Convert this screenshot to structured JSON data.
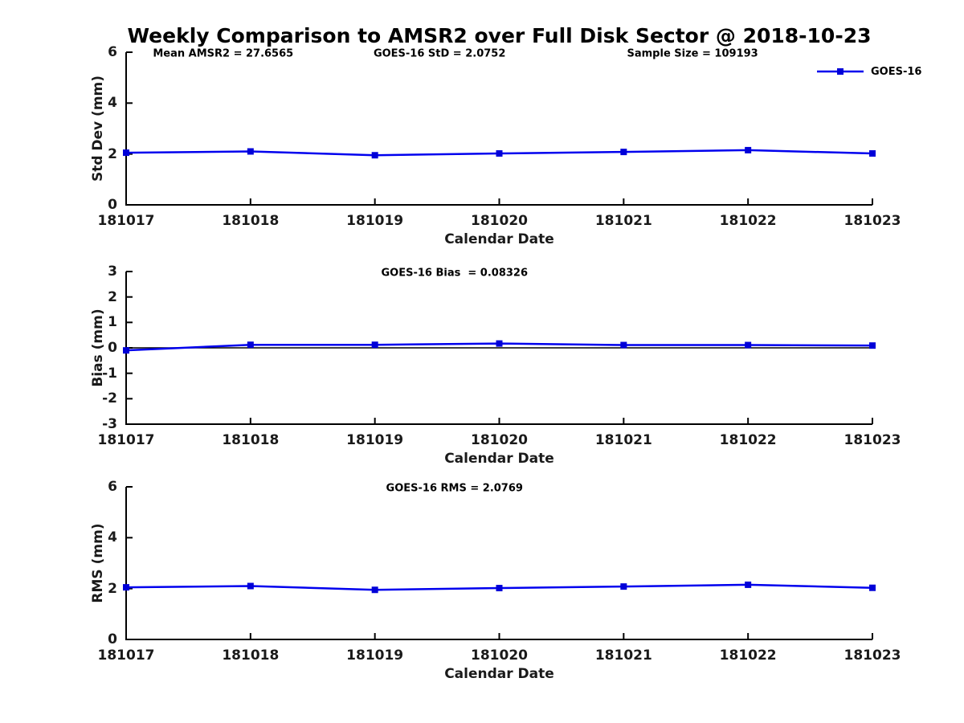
{
  "figure": {
    "title": "Weekly Comparison to AMSR2 over Full Disk Sector @ 2018-10-23",
    "legend": {
      "label": "GOES-16"
    },
    "colors": {
      "line": "#0000EE",
      "marker": "#0000D8",
      "axis": "#000000",
      "zero_line": "#000000",
      "background": "#FFFFFF"
    }
  },
  "chart_data": [
    {
      "type": "line",
      "subplot": "std-dev",
      "ylabel": "Std Dev (mm)",
      "xlabel": "Calendar Date",
      "ylim": [
        0,
        6
      ],
      "yticks": [
        0,
        2,
        4,
        6
      ],
      "categories": [
        "181017",
        "181018",
        "181019",
        "181020",
        "181021",
        "181022",
        "181023"
      ],
      "series": [
        {
          "name": "GOES-16",
          "values": [
            2.05,
            2.1,
            1.95,
            2.02,
            2.08,
            2.15,
            2.02
          ]
        }
      ],
      "annotations": [
        "Mean AMSR2 = 27.6565",
        "GOES-16 StD = 2.0752",
        "Sample Size = 109193"
      ],
      "legend_position": "top-right",
      "grid": false
    },
    {
      "type": "line",
      "subplot": "bias",
      "ylabel": "Bias (mm)",
      "xlabel": "Calendar Date",
      "ylim": [
        -3,
        3
      ],
      "yticks": [
        -3,
        -2,
        -1,
        0,
        1,
        2,
        3
      ],
      "zero_line": true,
      "categories": [
        "181017",
        "181018",
        "181019",
        "181020",
        "181021",
        "181022",
        "181023"
      ],
      "series": [
        {
          "name": "GOES-16",
          "values": [
            -0.1,
            0.12,
            0.12,
            0.17,
            0.11,
            0.11,
            0.09
          ]
        }
      ],
      "annotations": [
        "GOES-16 Bias  = 0.08326"
      ],
      "grid": false
    },
    {
      "type": "line",
      "subplot": "rms",
      "ylabel": "RMS (mm)",
      "xlabel": "Calendar Date",
      "ylim": [
        0,
        6
      ],
      "yticks": [
        0,
        2,
        4,
        6
      ],
      "categories": [
        "181017",
        "181018",
        "181019",
        "181020",
        "181021",
        "181022",
        "181023"
      ],
      "series": [
        {
          "name": "GOES-16",
          "values": [
            2.05,
            2.1,
            1.95,
            2.02,
            2.08,
            2.15,
            2.03
          ]
        }
      ],
      "annotations": [
        "GOES-16 RMS = 2.0769"
      ],
      "grid": false
    }
  ]
}
